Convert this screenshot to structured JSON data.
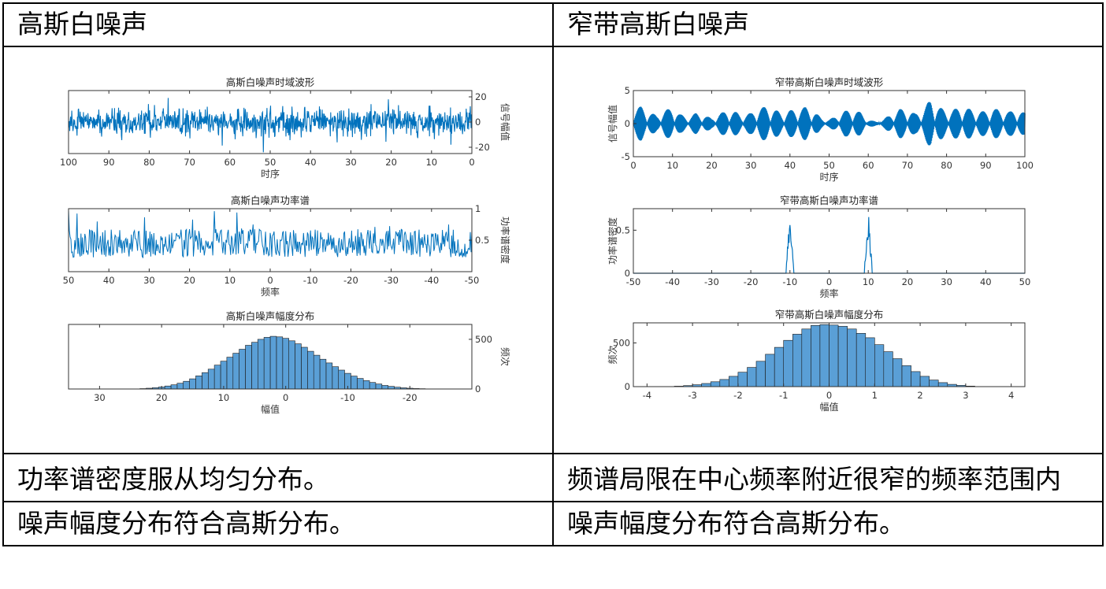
{
  "table": {
    "header_left": "高斯白噪声",
    "header_right": "窄带高斯白噪声",
    "row1_left": "功率谱密度服从均匀分布。",
    "row1_right": "频谱局限在中心频率附近很窄的频率范围内",
    "row2_left": "噪声幅度分布符合高斯分布。",
    "row2_right": "噪声幅度分布符合高斯分布。"
  },
  "colors": {
    "plot_line": "#0072bd",
    "hist_fill": "#5a9fd6",
    "axis": "#333333"
  },
  "chart_data": [
    {
      "id": "gw_time",
      "type": "line",
      "title": "高斯白噪声时域波形",
      "xlabel": "时序",
      "ylabel": "信号幅值",
      "xlim": [
        0,
        100
      ],
      "ylim": [
        -25,
        25
      ],
      "xticks": [
        0,
        10,
        20,
        30,
        40,
        50,
        60,
        70,
        80,
        90,
        100
      ],
      "yticks": [
        -20,
        0,
        20
      ],
      "amplitude": 10,
      "mirrored": true
    },
    {
      "id": "gw_psd",
      "type": "line",
      "title": "高斯白噪声功率谱",
      "xlabel": "频率",
      "ylabel": "功率谱密度",
      "xlim": [
        -50,
        50
      ],
      "ylim": [
        0,
        1
      ],
      "xticks": [
        -50,
        -40,
        -30,
        -20,
        -10,
        0,
        10,
        20,
        30,
        40,
        50
      ],
      "yticks": [
        0.5,
        1
      ],
      "mean_level": 0.45,
      "mirrored": true
    },
    {
      "id": "gw_hist",
      "type": "bar",
      "title": "高斯白噪声幅度分布",
      "xlabel": "幅值",
      "ylabel": "频次",
      "xlim": [
        -30,
        35
      ],
      "ylim": [
        0,
        650
      ],
      "xticks": [
        -20,
        -10,
        0,
        10,
        20,
        30
      ],
      "yticks": [
        0,
        500
      ],
      "bin_centers": [
        -22,
        -21,
        -20,
        -19,
        -18,
        -17,
        -16,
        -15,
        -14,
        -13,
        -12,
        -11,
        -10,
        -9,
        -8,
        -7,
        -6,
        -5,
        -4,
        -3,
        -2,
        -1,
        0,
        1,
        2,
        3,
        4,
        5,
        6,
        7,
        8,
        9,
        10,
        11,
        12,
        13,
        14,
        15,
        16,
        17,
        18,
        19,
        20,
        21,
        22,
        23
      ],
      "values": [
        3,
        5,
        8,
        12,
        18,
        26,
        36,
        50,
        66,
        84,
        106,
        130,
        158,
        190,
        224,
        262,
        300,
        340,
        380,
        420,
        455,
        485,
        510,
        525,
        530,
        520,
        500,
        470,
        440,
        400,
        360,
        320,
        280,
        240,
        200,
        165,
        132,
        102,
        78,
        58,
        42,
        30,
        20,
        13,
        8,
        4
      ],
      "mirrored": true
    },
    {
      "id": "nb_time",
      "type": "line",
      "title": "窄带高斯白噪声时域波形",
      "xlabel": "时序",
      "ylabel": "信号幅值",
      "xlim": [
        0,
        100
      ],
      "ylim": [
        -5,
        5
      ],
      "xticks": [
        0,
        10,
        20,
        30,
        40,
        50,
        60,
        70,
        80,
        90,
        100
      ],
      "yticks": [
        -5,
        0,
        5
      ],
      "envelope": [
        2.2,
        2.6,
        1.8,
        1.2,
        2.0,
        2.4,
        1.4,
        0.9,
        1.6,
        1.3,
        0.8,
        1.5,
        2.0,
        1.8,
        1.2,
        1.6,
        2.3,
        2.6,
        2.2,
        1.5,
        2.0,
        2.2,
        2.5,
        2.0,
        0.8,
        0.6,
        1.2,
        1.9,
        2.2,
        1.7,
        0.6,
        0.3,
        0.7,
        1.5,
        2.2,
        2.1,
        1.5,
        2.0,
        3.8,
        2.6,
        1.8,
        2.2,
        2.5,
        2.2,
        1.8,
        1.9,
        2.3,
        2.0,
        1.8,
        2.1,
        1.6
      ],
      "carrier_freq": 10
    },
    {
      "id": "nb_psd",
      "type": "line",
      "title": "窄带高斯白噪声功率谱",
      "xlabel": "频率",
      "ylabel": "功率谱密度",
      "xlim": [
        -50,
        50
      ],
      "ylim": [
        0,
        0.75
      ],
      "xticks": [
        -50,
        -40,
        -30,
        -20,
        -10,
        0,
        10,
        20,
        30,
        40,
        50
      ],
      "yticks": [
        0,
        0.5
      ],
      "peaks_at": [
        -10,
        10
      ],
      "peak_value": 0.75
    },
    {
      "id": "nb_hist",
      "type": "bar",
      "title": "窄带高斯白噪声幅度分布",
      "xlabel": "幅值",
      "ylabel": "频次",
      "xlim": [
        -4.3,
        4.3
      ],
      "ylim": [
        0,
        730
      ],
      "xticks": [
        -4,
        -3,
        -2,
        -1,
        0,
        1,
        2,
        3,
        4
      ],
      "yticks": [
        0,
        500
      ],
      "bin_centers": [
        -3.3,
        -3.1,
        -2.9,
        -2.7,
        -2.5,
        -2.3,
        -2.1,
        -1.9,
        -1.7,
        -1.5,
        -1.3,
        -1.1,
        -0.9,
        -0.7,
        -0.5,
        -0.3,
        -0.1,
        0.1,
        0.3,
        0.5,
        0.7,
        0.9,
        1.1,
        1.3,
        1.5,
        1.7,
        1.9,
        2.1,
        2.3,
        2.5,
        2.7,
        2.9,
        3.1
      ],
      "values": [
        5,
        12,
        22,
        36,
        56,
        82,
        118,
        165,
        220,
        290,
        370,
        450,
        530,
        600,
        660,
        700,
        710,
        705,
        690,
        660,
        610,
        560,
        480,
        400,
        320,
        240,
        172,
        118,
        76,
        46,
        26,
        14,
        6
      ]
    }
  ]
}
